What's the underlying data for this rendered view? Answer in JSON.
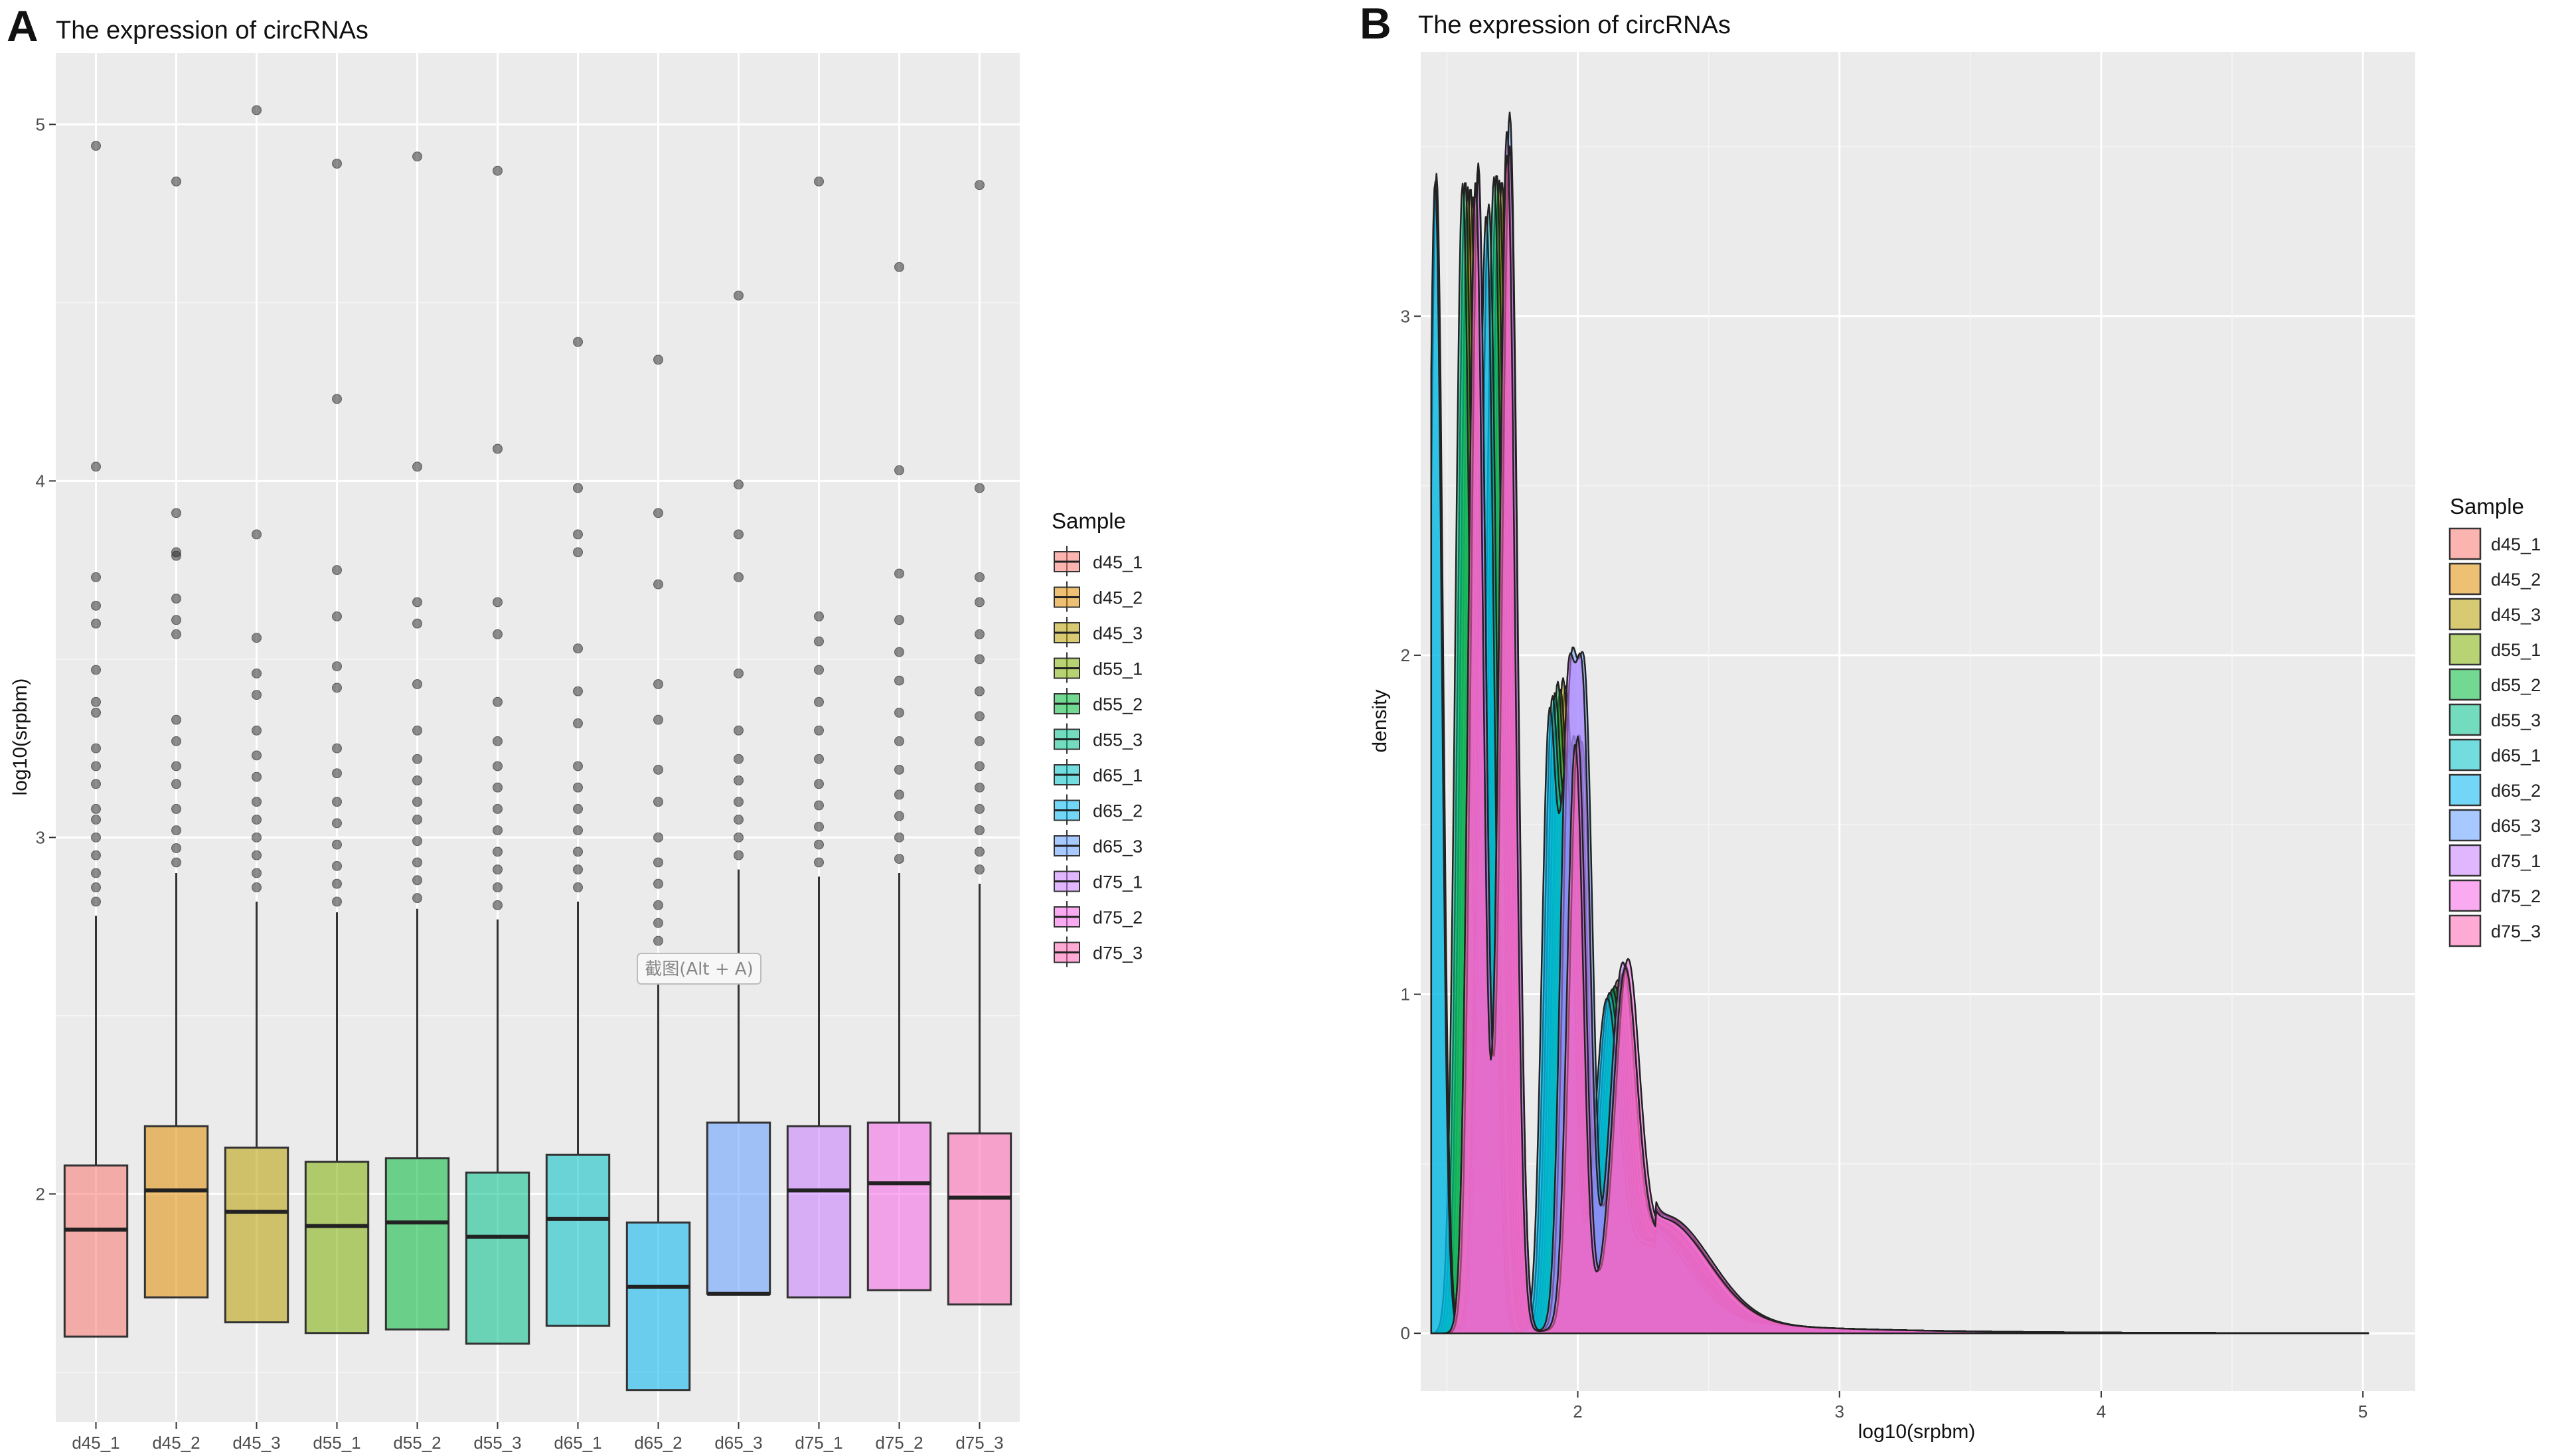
{
  "colors": {
    "panel_bg": "#ebebeb",
    "grid_major": "#ffffff",
    "grid_minor": "#f5f5f5",
    "d45_1": "#F8766D",
    "d45_2": "#DE8C00",
    "d45_3": "#B79F00",
    "d55_1": "#7CAE00",
    "d55_2": "#00BA38",
    "d55_3": "#00C08B",
    "d65_1": "#00BFC4",
    "d65_2": "#00B4F0",
    "d65_3": "#619CFF",
    "d75_1": "#C77CFF",
    "d75_2": "#F564E3",
    "d75_3": "#FF64B0"
  },
  "panelA": {
    "letter": "A",
    "tooltip": "截图(Alt + A)"
  },
  "panelB": {
    "letter": "B"
  },
  "chart_data": [
    {
      "type": "box",
      "title": "The expression of circRNAs",
      "xlabel": "",
      "ylabel": "log10(srpbm)",
      "ylim": [
        1.36,
        5.2
      ],
      "yticks": [
        2,
        3,
        4,
        5
      ],
      "legend_title": "Sample",
      "legend_position": "right",
      "categories": [
        "d45_1",
        "d45_2",
        "d45_3",
        "d55_1",
        "d55_2",
        "d55_3",
        "d65_1",
        "d65_2",
        "d65_3",
        "d75_1",
        "d75_2",
        "d75_3"
      ],
      "boxes": [
        {
          "name": "d45_1",
          "q1": 1.6,
          "median": 1.9,
          "q3": 2.08,
          "whisker_low": 1.6,
          "whisker_high": 2.78,
          "outliers": [
            2.82,
            2.86,
            2.9,
            2.95,
            3.0,
            3.05,
            3.08,
            3.15,
            3.2,
            3.25,
            3.35,
            3.38,
            3.47,
            3.6,
            3.65,
            3.73,
            4.04,
            4.94
          ]
        },
        {
          "name": "d45_2",
          "q1": 1.71,
          "median": 2.01,
          "q3": 2.19,
          "whisker_low": 1.71,
          "whisker_high": 2.9,
          "outliers": [
            2.93,
            2.97,
            3.02,
            3.08,
            3.15,
            3.2,
            3.27,
            3.33,
            3.57,
            3.61,
            3.67,
            3.79,
            3.8,
            3.91,
            4.84
          ]
        },
        {
          "name": "d45_3",
          "q1": 1.64,
          "median": 1.95,
          "q3": 2.13,
          "whisker_low": 1.64,
          "whisker_high": 2.82,
          "outliers": [
            2.86,
            2.9,
            2.95,
            3.0,
            3.05,
            3.1,
            3.17,
            3.23,
            3.3,
            3.4,
            3.46,
            3.56,
            3.85,
            5.04
          ]
        },
        {
          "name": "d55_1",
          "q1": 1.61,
          "median": 1.91,
          "q3": 2.09,
          "whisker_low": 1.61,
          "whisker_high": 2.79,
          "outliers": [
            2.82,
            2.87,
            2.92,
            2.98,
            3.04,
            3.1,
            3.18,
            3.25,
            3.42,
            3.48,
            3.62,
            3.75,
            4.23,
            4.89
          ]
        },
        {
          "name": "d55_2",
          "q1": 1.62,
          "median": 1.92,
          "q3": 2.1,
          "whisker_low": 1.62,
          "whisker_high": 2.8,
          "outliers": [
            2.83,
            2.88,
            2.93,
            2.99,
            3.05,
            3.1,
            3.16,
            3.22,
            3.3,
            3.43,
            3.6,
            3.66,
            4.04,
            4.91
          ]
        },
        {
          "name": "d55_3",
          "q1": 1.58,
          "median": 1.88,
          "q3": 2.06,
          "whisker_low": 1.58,
          "whisker_high": 2.77,
          "outliers": [
            2.81,
            2.86,
            2.91,
            2.96,
            3.02,
            3.08,
            3.14,
            3.2,
            3.27,
            3.38,
            3.57,
            3.66,
            4.09,
            4.87
          ]
        },
        {
          "name": "d65_1",
          "q1": 1.63,
          "median": 1.93,
          "q3": 2.11,
          "whisker_low": 1.63,
          "whisker_high": 2.82,
          "outliers": [
            2.86,
            2.91,
            2.96,
            3.02,
            3.08,
            3.14,
            3.2,
            3.32,
            3.41,
            3.53,
            3.8,
            3.85,
            3.98,
            4.39
          ]
        },
        {
          "name": "d65_2",
          "q1": 1.45,
          "median": 1.74,
          "q3": 1.92,
          "whisker_low": 1.45,
          "whisker_high": 2.62,
          "outliers": [
            2.66,
            2.71,
            2.76,
            2.81,
            2.87,
            2.93,
            3.0,
            3.1,
            3.19,
            3.33,
            3.43,
            3.71,
            3.91,
            4.34
          ]
        },
        {
          "name": "d65_3",
          "q1": 1.72,
          "median": 1.72,
          "q3": 2.2,
          "whisker_low": 1.72,
          "whisker_high": 2.91,
          "outliers": [
            2.95,
            3.0,
            3.05,
            3.1,
            3.16,
            3.22,
            3.3,
            3.46,
            3.73,
            3.85,
            3.99,
            4.52
          ]
        },
        {
          "name": "d75_1",
          "q1": 1.71,
          "median": 2.01,
          "q3": 2.19,
          "whisker_low": 1.71,
          "whisker_high": 2.89,
          "outliers": [
            2.93,
            2.98,
            3.03,
            3.09,
            3.15,
            3.22,
            3.3,
            3.38,
            3.47,
            3.55,
            3.62,
            4.84
          ]
        },
        {
          "name": "d75_2",
          "q1": 1.73,
          "median": 2.03,
          "q3": 2.2,
          "whisker_low": 1.73,
          "whisker_high": 2.9,
          "outliers": [
            2.94,
            3.0,
            3.06,
            3.12,
            3.19,
            3.27,
            3.35,
            3.44,
            3.52,
            3.61,
            3.74,
            4.03,
            4.6
          ]
        },
        {
          "name": "d75_3",
          "q1": 1.69,
          "median": 1.99,
          "q3": 2.17,
          "whisker_low": 1.69,
          "whisker_high": 2.87,
          "outliers": [
            2.91,
            2.96,
            3.02,
            3.08,
            3.14,
            3.2,
            3.27,
            3.34,
            3.41,
            3.5,
            3.57,
            3.66,
            3.73,
            3.98,
            4.83
          ]
        }
      ]
    },
    {
      "type": "area",
      "title": "The expression of circRNAs",
      "xlabel": "log10(srpbm)",
      "ylabel": "density",
      "xlim": [
        1.4,
        5.2
      ],
      "ylim": [
        -0.17,
        3.78
      ],
      "xticks": [
        2,
        3,
        4,
        5
      ],
      "yticks": [
        0,
        1,
        2,
        3
      ],
      "legend_title": "Sample",
      "legend_position": "right",
      "series": [
        {
          "name": "d45_1",
          "peaks": [
            [
              1.58,
              3.38,
              0.028
            ],
            [
              1.7,
              3.39,
              0.03
            ],
            [
              1.93,
              1.8,
              0.028
            ],
            [
              2.0,
              1.58,
              0.028
            ],
            [
              2.15,
              0.86,
              0.045
            ],
            [
              2.3,
              0.28,
              0.16
            ]
          ]
        },
        {
          "name": "d45_2",
          "peaks": [
            [
              1.6,
              3.35,
              0.028
            ],
            [
              1.72,
              3.38,
              0.03
            ],
            [
              1.95,
              1.81,
              0.028
            ],
            [
              2.02,
              1.6,
              0.028
            ],
            [
              2.17,
              0.88,
              0.045
            ],
            [
              2.32,
              0.28,
              0.16
            ]
          ]
        },
        {
          "name": "d45_3",
          "peaks": [
            [
              1.59,
              3.38,
              0.028
            ],
            [
              1.71,
              3.4,
              0.03
            ],
            [
              1.94,
              1.83,
              0.028
            ],
            [
              2.01,
              1.62,
              0.028
            ],
            [
              2.16,
              0.85,
              0.045
            ],
            [
              2.31,
              0.28,
              0.16
            ]
          ]
        },
        {
          "name": "d55_1",
          "peaks": [
            [
              1.58,
              3.37,
              0.028
            ],
            [
              1.7,
              3.4,
              0.03
            ],
            [
              1.93,
              1.8,
              0.028
            ],
            [
              2.0,
              1.6,
              0.028
            ],
            [
              2.15,
              0.84,
              0.045
            ],
            [
              2.3,
              0.27,
              0.16
            ]
          ]
        },
        {
          "name": "d55_2",
          "peaks": [
            [
              1.57,
              3.4,
              0.028
            ],
            [
              1.69,
              3.42,
              0.03
            ],
            [
              1.92,
              1.82,
              0.028
            ],
            [
              1.99,
              1.62,
              0.028
            ],
            [
              2.14,
              0.85,
              0.045
            ],
            [
              2.29,
              0.27,
              0.16
            ]
          ]
        },
        {
          "name": "d55_3",
          "peaks": [
            [
              1.56,
              3.39,
              0.028
            ],
            [
              1.68,
              3.41,
              0.03
            ],
            [
              1.91,
              1.79,
              0.028
            ],
            [
              1.98,
              1.6,
              0.028
            ],
            [
              2.13,
              0.84,
              0.045
            ],
            [
              2.28,
              0.27,
              0.16
            ]
          ]
        },
        {
          "name": "d65_1",
          "peaks": [
            [
              1.46,
              3.42,
              0.025
            ],
            [
              1.66,
              3.33,
              0.03
            ],
            [
              1.9,
              1.78,
              0.028
            ],
            [
              1.97,
              1.58,
              0.028
            ],
            [
              2.12,
              0.83,
              0.045
            ],
            [
              2.27,
              0.27,
              0.16
            ]
          ]
        },
        {
          "name": "d65_2",
          "peaks": [
            [
              1.455,
              3.4,
              0.025
            ],
            [
              1.65,
              3.3,
              0.03
            ],
            [
              1.89,
              1.75,
              0.028
            ],
            [
              1.96,
              1.55,
              0.028
            ],
            [
              2.11,
              0.82,
              0.045
            ],
            [
              2.26,
              0.26,
              0.16
            ]
          ]
        },
        {
          "name": "d65_3",
          "peaks": [
            [
              1.62,
              3.45,
              0.028
            ],
            [
              1.74,
              3.6,
              0.03
            ],
            [
              1.97,
              1.75,
              0.028
            ],
            [
              2.03,
              1.7,
              0.028
            ],
            [
              2.18,
              0.88,
              0.045
            ],
            [
              2.33,
              0.3,
              0.17
            ]
          ]
        },
        {
          "name": "d75_1",
          "peaks": [
            [
              1.61,
              3.4,
              0.028
            ],
            [
              1.73,
              3.55,
              0.03
            ],
            [
              1.96,
              1.73,
              0.028
            ],
            [
              2.02,
              1.7,
              0.028
            ],
            [
              2.17,
              0.89,
              0.045
            ],
            [
              2.32,
              0.3,
              0.17
            ]
          ]
        },
        {
          "name": "d75_2",
          "peaks": [
            [
              1.62,
              3.42,
              0.028
            ],
            [
              1.74,
              3.5,
              0.03
            ],
            [
              2.0,
              1.72,
              0.03
            ],
            [
              2.19,
              0.9,
              0.045
            ],
            [
              2.34,
              0.3,
              0.17
            ]
          ]
        },
        {
          "name": "d75_3",
          "peaks": [
            [
              1.61,
              3.38,
              0.028
            ],
            [
              1.73,
              3.48,
              0.03
            ],
            [
              1.99,
              1.7,
              0.03
            ],
            [
              2.18,
              0.88,
              0.045
            ],
            [
              2.33,
              0.29,
              0.17
            ]
          ]
        }
      ]
    }
  ]
}
